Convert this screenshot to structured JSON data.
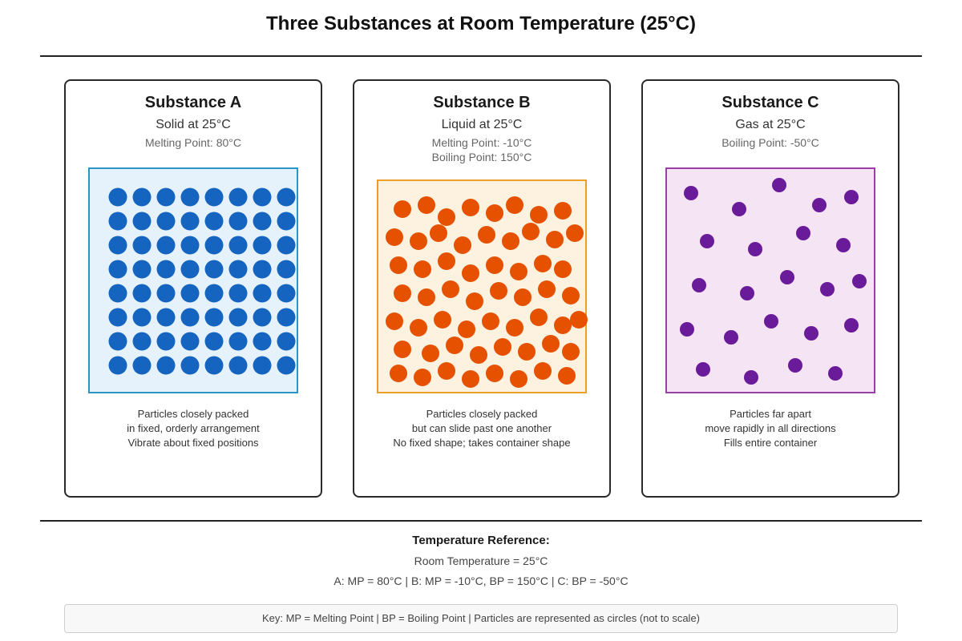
{
  "title": "Three Substances at Room Temperature (25°C)",
  "substances": [
    {
      "name": "Substance A",
      "state": "Solid at 25°C",
      "points": [
        "Melting Point: 80°C"
      ],
      "description": [
        "Particles closely packed",
        "in fixed, orderly arrangement",
        "Vibrate about fixed positions"
      ],
      "colors": {
        "border": "#2b95c3",
        "fill": "#e6f2fb",
        "particle": "#1565c0"
      }
    },
    {
      "name": "Substance B",
      "state": "Liquid at 25°C",
      "points": [
        "Melting Point: -10°C",
        "Boiling Point: 150°C"
      ],
      "description": [
        "Particles closely packed",
        "but can slide past one another",
        "No fixed shape; takes container shape"
      ],
      "colors": {
        "border": "#e8a02a",
        "fill": "#fdf1e0",
        "particle": "#e65100"
      }
    },
    {
      "name": "Substance C",
      "state": "Gas at 25°C",
      "points": [
        "Boiling Point: -50°C"
      ],
      "description": [
        "Particles far apart",
        "move rapidly in all directions",
        "Fills entire container"
      ],
      "colors": {
        "border": "#9a3fa5",
        "fill": "#f4e4f4",
        "particle": "#6a1b9a"
      }
    }
  ],
  "reference": {
    "title": "Temperature Reference:",
    "lines": [
      "Room Temperature = 25°C",
      "A: MP = 80°C | B: MP = -10°C, BP = 150°C | C: BP = -50°C"
    ]
  },
  "key": "Key: MP = Melting Point | BP = Boiling Point | Particles are represented as circles (not to scale)"
}
